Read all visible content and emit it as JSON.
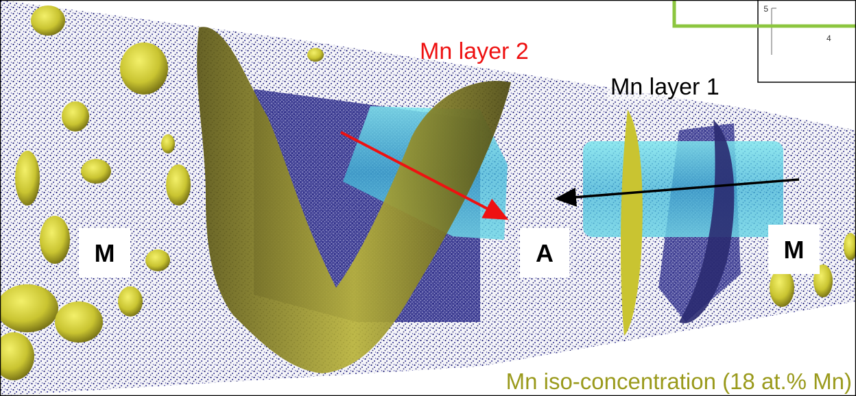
{
  "labels": {
    "mn_layer_2": "Mn layer 2",
    "mn_layer_1": "Mn layer 1",
    "region_left": "M",
    "region_middle": "A",
    "region_right": "M",
    "iso_concentration": "Mn iso-concentration (18 at.% Mn)"
  },
  "inset": {
    "tick_top": "5",
    "tick_bottom": "4"
  }
}
